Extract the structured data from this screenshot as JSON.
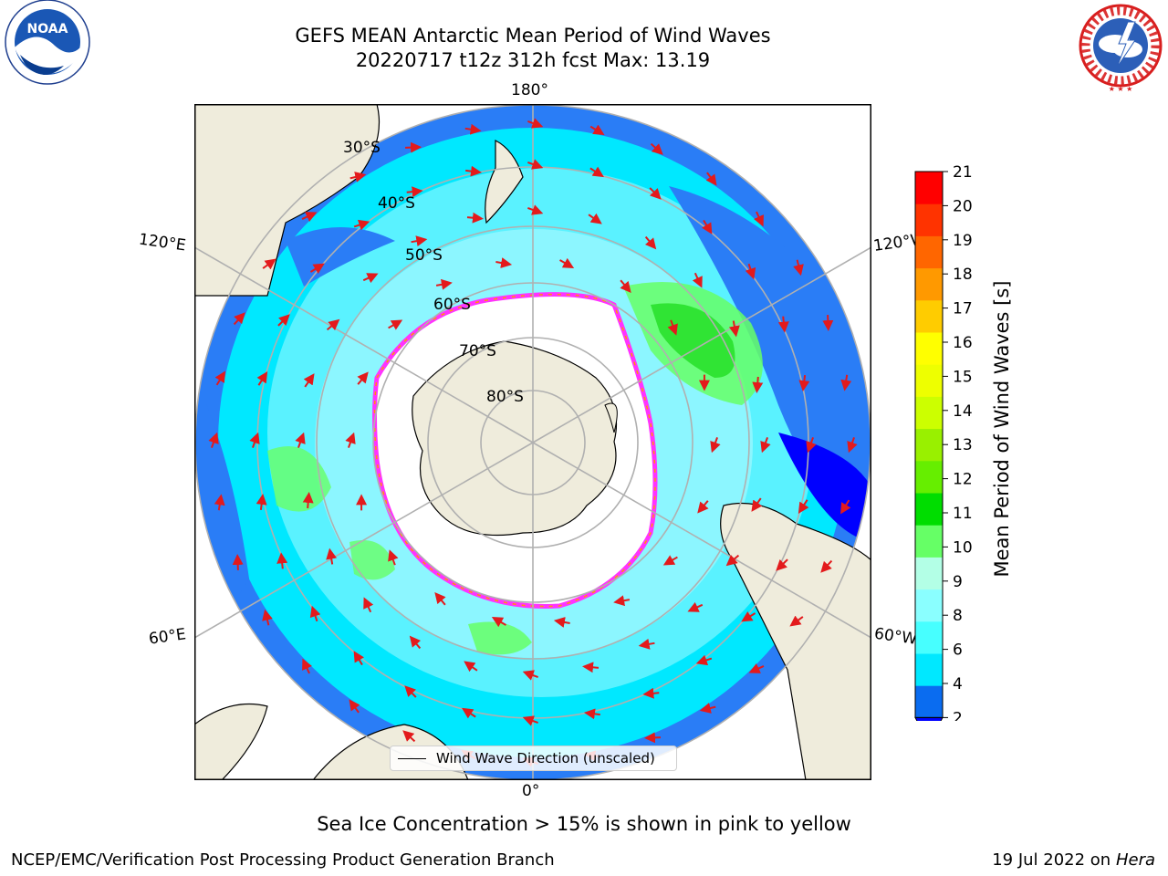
{
  "title": {
    "line1": "GEFS MEAN Antarctic Mean Period of Wind Waves",
    "line2": "20220717 t12z 312h fcst   Max: 13.19"
  },
  "logos": {
    "left": {
      "icon": "noaa-logo-icon",
      "text": "NOAA"
    },
    "right": {
      "icon": "national-weather-service-logo-icon",
      "text": "NATIONAL WEATHER SERVICE"
    }
  },
  "map": {
    "projection": "south-polar-stereographic",
    "longitude_labels": {
      "top": "180°",
      "bottom": "0°",
      "left_upper": "120°E",
      "left_lower": "60°E",
      "right_upper": "120°W",
      "right_lower": "60°W"
    },
    "latitude_labels": [
      "30°S",
      "40°S",
      "50°S",
      "60°S",
      "70°S",
      "80°S"
    ],
    "land_color": "#efecdc",
    "ice_edge_colors": [
      "#ff33ff",
      "#ff9900",
      "#ffff00"
    ],
    "arrow_color": "#e31a1c"
  },
  "legend": {
    "label": "Wind Wave Direction (unscaled)"
  },
  "colorbar": {
    "label": "Mean Period of Wind Waves [s]",
    "ticks": [
      "2",
      "4",
      "6",
      "8",
      "9",
      "10",
      "11",
      "12",
      "13",
      "14",
      "15",
      "16",
      "17",
      "18",
      "19",
      "20",
      "21"
    ],
    "colors": [
      "#0a6cf0",
      "#00e8ff",
      "#47ffff",
      "#8affff",
      "#b3ffe6",
      "#66ff66",
      "#00dd00",
      "#66ee00",
      "#99f000",
      "#ccff00",
      "#eeff00",
      "#ffff00",
      "#ffcc00",
      "#ff9900",
      "#ff6600",
      "#ff3300",
      "#ff0000"
    ],
    "under_color": "#0000ff"
  },
  "footer": {
    "note": "Sea Ice Concentration > 15% is shown in pink to yellow",
    "left": "NCEP/EMC/Verification Post Processing Product Generation Branch",
    "right_prefix": "19 Jul 2022 on ",
    "right_host": "Hera"
  }
}
